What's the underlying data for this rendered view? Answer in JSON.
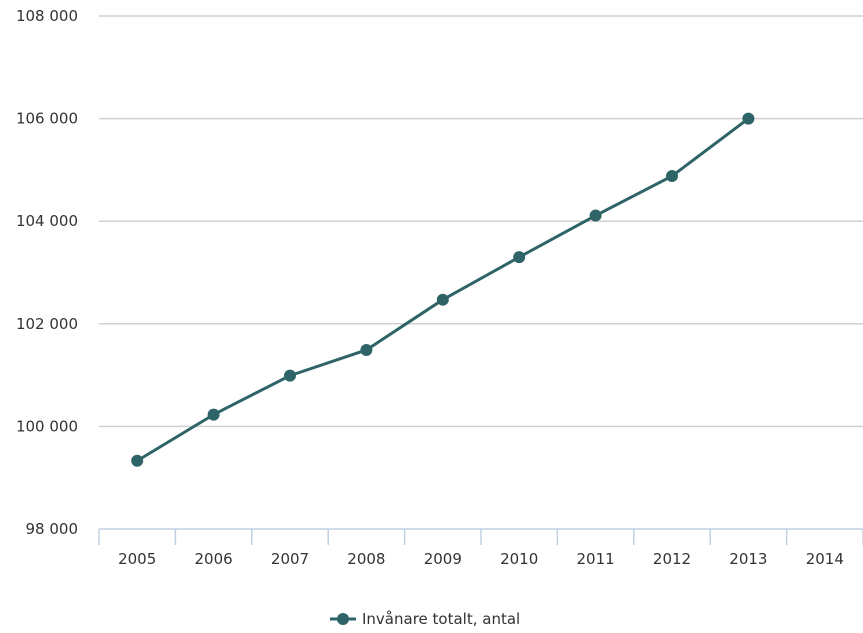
{
  "chart_data": {
    "type": "line",
    "title": "",
    "xlabel": "",
    "ylabel": "",
    "categories": [
      "2005",
      "2006",
      "2007",
      "2008",
      "2009",
      "2010",
      "2011",
      "2012",
      "2013",
      "2014"
    ],
    "series": [
      {
        "name": "Invånare totalt, antal",
        "color": "#2e6468",
        "values": [
          99330,
          100230,
          100990,
          101490,
          102470,
          103300,
          104110,
          104880,
          106000,
          null
        ]
      }
    ],
    "ylim": [
      98000,
      108000
    ],
    "yticks": [
      98000,
      100000,
      102000,
      104000,
      106000,
      108000
    ],
    "ytick_labels": [
      "98 000",
      "100 000",
      "102 000",
      "104 000",
      "106 000",
      "108 000"
    ],
    "grid": true,
    "legend": "bottom-center"
  }
}
